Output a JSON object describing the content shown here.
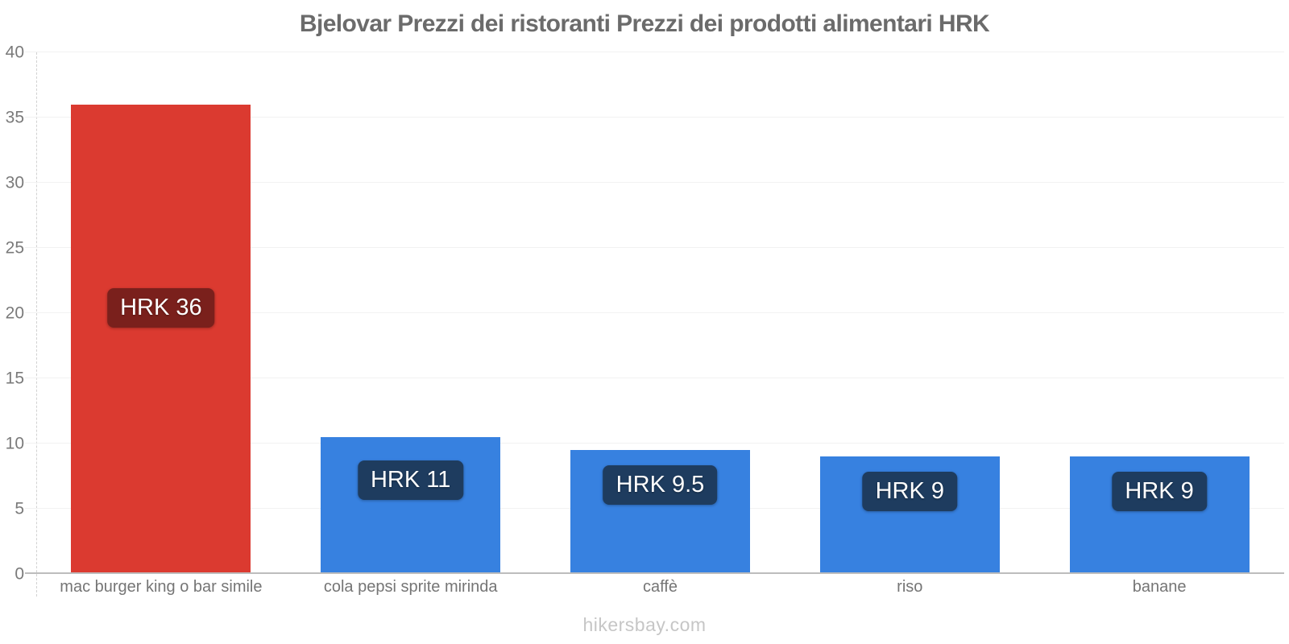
{
  "chart": {
    "title": "Bjelovar Prezzi dei ristoranti Prezzi dei prodotti alimentari HRK"
  },
  "chart_data": {
    "type": "bar",
    "title": "Bjelovar Prezzi dei ristoranti Prezzi dei prodotti alimentari HRK",
    "currency": "HRK",
    "categories": [
      "mac burger king o bar simile",
      "cola pepsi sprite mirinda",
      "caffè",
      "riso",
      "banane"
    ],
    "values": [
      36,
      10.5,
      9.5,
      9,
      9
    ],
    "bar_labels": [
      "HRK 36",
      "HRK 11",
      "HRK 9.5",
      "HRK 9",
      "HRK 9"
    ],
    "bar_colors": [
      "#db3a30",
      "#3781e0",
      "#3781e0",
      "#3781e0",
      "#3781e0"
    ],
    "badge_colors": [
      "#7a201c",
      "#1e3c5f",
      "#1e3c5f",
      "#1e3c5f",
      "#1e3c5f"
    ],
    "xlabel": "",
    "ylabel": "",
    "ylim": [
      0,
      40
    ],
    "y_ticks": [
      0,
      5,
      10,
      15,
      20,
      25,
      30,
      35,
      40
    ],
    "grid": true,
    "legend": false,
    "colors": {
      "title_text": "#6b6b6b",
      "axis_text": "#7a7a7a",
      "gridline": "#f2f2f2",
      "axis_line": "#bdbdbd",
      "watermark_text": "#c6c6c6"
    }
  },
  "footer": {
    "watermark": "hikersbay.com"
  }
}
